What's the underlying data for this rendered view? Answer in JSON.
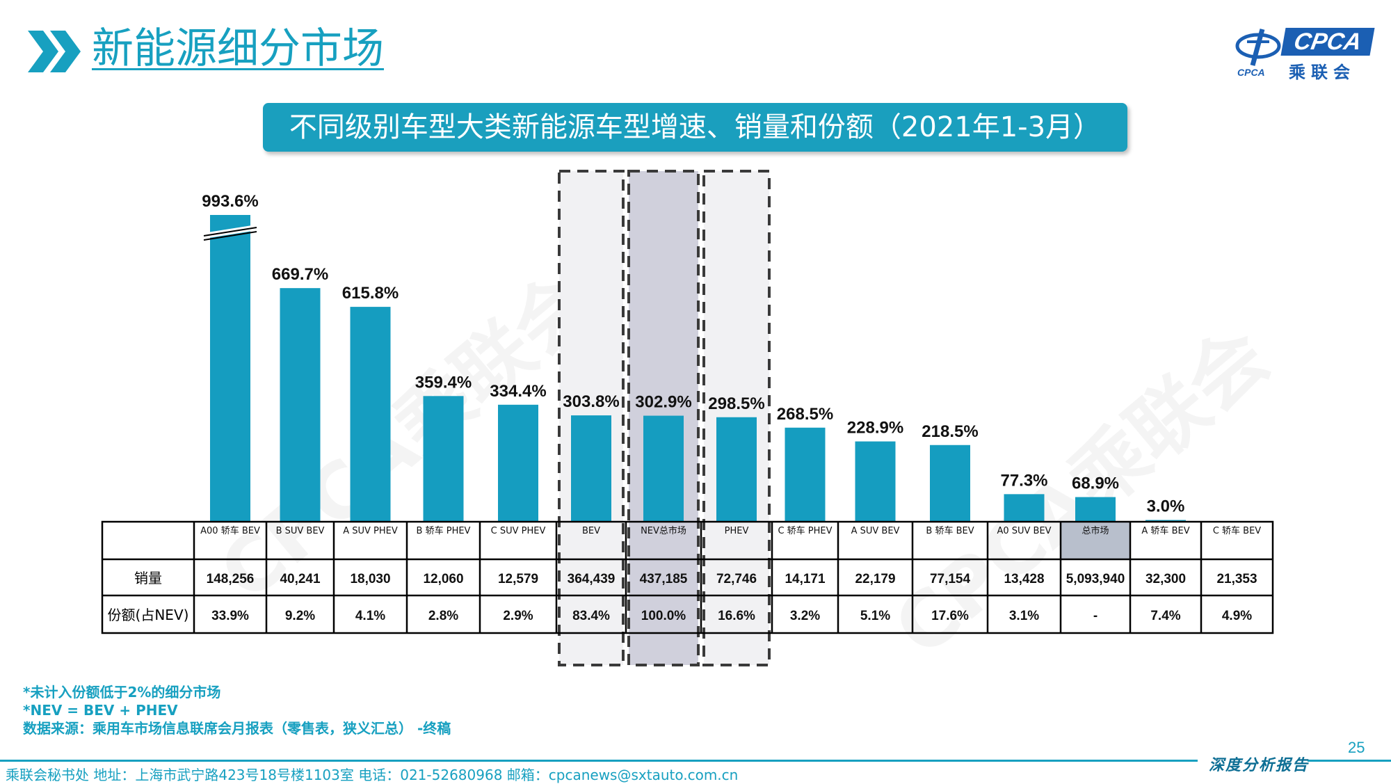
{
  "header": {
    "title": "新能源细分市场"
  },
  "logo": {
    "brand": "CPCA",
    "cn_name": "乘联会",
    "sub": "CPCA"
  },
  "banner": {
    "title": "不同级别车型大类新能源车型增速、销量和份额（2021年1-3月）"
  },
  "watermark": {
    "text": "CPCA乘联会"
  },
  "chart_data": {
    "type": "bar",
    "categories": [
      "A00 轿车 BEV",
      "B SUV BEV",
      "A SUV PHEV",
      "B 轿车 PHEV",
      "C SUV PHEV",
      "BEV",
      "NEV总市场",
      "PHEV",
      "C 轿车 PHEV",
      "A SUV BEV",
      "B 轿车 BEV",
      "A0 SUV BEV",
      "总市场",
      "A 轿车 BEV",
      "C 轿车 BEV"
    ],
    "values": [
      993.6,
      669.7,
      615.8,
      359.4,
      334.4,
      303.8,
      302.9,
      298.5,
      268.5,
      228.9,
      218.5,
      77.3,
      68.9,
      3.0,
      0
    ],
    "value_labels": [
      "993.6%",
      "669.7%",
      "615.8%",
      "359.4%",
      "334.4%",
      "303.8%",
      "302.9%",
      "298.5%",
      "268.5%",
      "228.9%",
      "218.5%",
      "77.3%",
      "68.9%",
      "3.0%",
      ""
    ],
    "axis_break_on_first_bar": true,
    "highlighted_columns": [
      "BEV",
      "NEV总市场",
      "PHEV"
    ],
    "table": {
      "row_labels": [
        "销量",
        "份额(占NEV)"
      ],
      "sales": [
        "148,256",
        "40,241",
        "18,030",
        "12,060",
        "12,579",
        "364,439",
        "437,185",
        "72,746",
        "14,171",
        "22,179",
        "77,154",
        "13,428",
        "5,093,940",
        "32,300",
        "21,353"
      ],
      "share": [
        "33.9%",
        "9.2%",
        "4.1%",
        "2.8%",
        "2.9%",
        "83.4%",
        "100.0%",
        "16.6%",
        "3.2%",
        "5.1%",
        "17.6%",
        "3.1%",
        "-",
        "7.4%",
        "4.9%"
      ]
    },
    "colors": {
      "bar": "#159dc0",
      "highlight_bg": "#f1f1f3",
      "highlight_bg_dark": "#d0d0dc",
      "total_header_bg": "#b8bfcc"
    }
  },
  "notes": [
    "*未计入份额低于2%的细分市场",
    "*NEV = BEV + PHEV",
    "数据来源：乘用车市场信息联席会月报表（零售表，狭义汇总） -终稿"
  ],
  "page_number": "25",
  "footer": {
    "left": "乘联会秘书处  地址：上海市武宁路423号18号楼1103室  电话：021-52680968  邮箱：cpcanews@sxtauto.com.cn",
    "right": "深度分析报告"
  }
}
